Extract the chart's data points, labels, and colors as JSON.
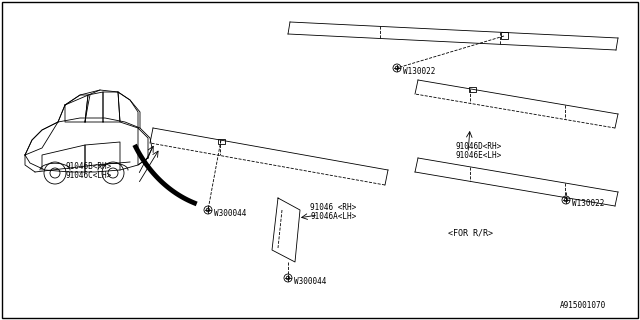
{
  "bg_color": "#ffffff",
  "border_color": "#000000",
  "line_color": "#000000",
  "part_number_label1": "91046B<RH>",
  "part_number_label1b": "91046C<LH>",
  "part_number_label2": "91046D<RH>",
  "part_number_label2b": "91046E<LH>",
  "part_number_label3": "91046 <RH>",
  "part_number_label3b": "91046A<LH>",
  "washer_label1": "W300044",
  "washer_label2": "W130022",
  "washer_label3": "W130022",
  "washer_label4": "W300044",
  "for_rr_label": "<FOR R/R>",
  "diagram_id": "A915001070"
}
